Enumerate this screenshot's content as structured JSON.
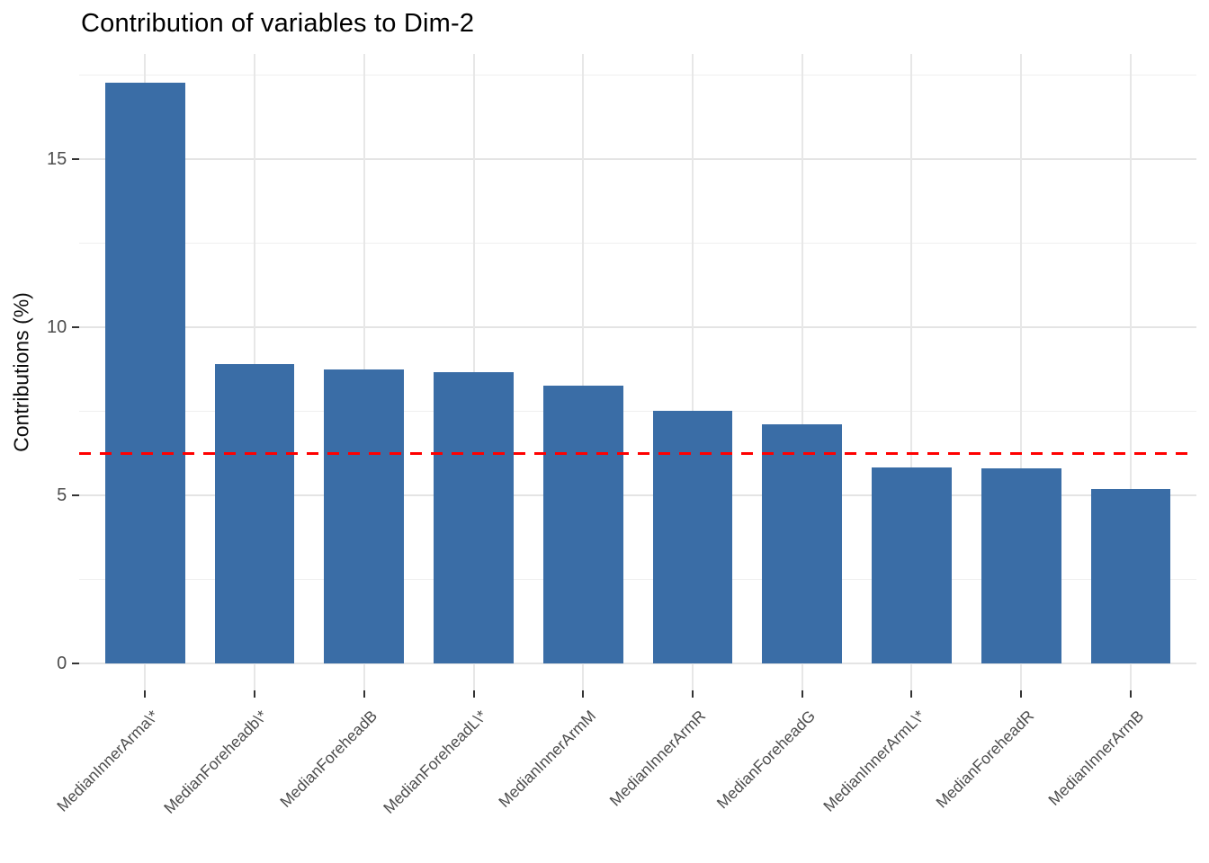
{
  "chart_data": {
    "type": "bar",
    "title": "Contribution of variables to Dim-2",
    "xlabel": "",
    "ylabel": "Contributions (%)",
    "categories": [
      "MedianInnerArma\\*",
      "MedianForeheadb\\*",
      "MedianForeheadB",
      "MedianForeheadL\\*",
      "MedianInnerArmM",
      "MedianInnerArmR",
      "MedianForeheadG",
      "MedianInnerArmL\\*",
      "MedianForeheadR",
      "MedianInnerArmB"
    ],
    "values": [
      17.27,
      8.9,
      8.74,
      8.65,
      8.26,
      7.5,
      7.1,
      5.83,
      5.8,
      5.19
    ],
    "ylim": [
      -0.8,
      18.1
    ],
    "yticks": [
      0,
      5,
      10,
      15
    ],
    "ytick_labels": [
      "0",
      "5",
      "10",
      "15"
    ],
    "y_minor_gridlines": [
      2.5,
      7.5,
      12.5,
      17.5
    ],
    "grid": true,
    "legend_position": "none",
    "bar_color": "#3a6da6",
    "reference_line": {
      "value": 6.25,
      "color": "#ff0000",
      "style": "dashed"
    }
  }
}
